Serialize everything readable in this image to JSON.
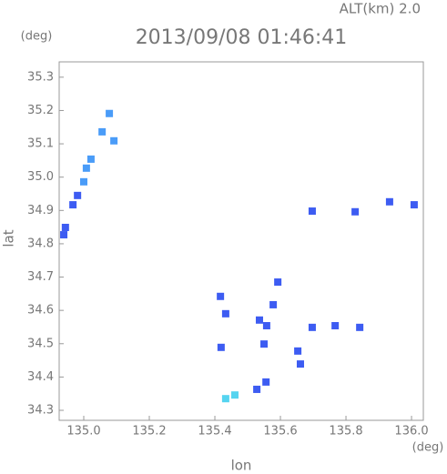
{
  "chart_data": {
    "type": "scatter",
    "title": "2013/09/08 01:46:41",
    "subtitle": "ALT(km) 2.0",
    "xlabel": "lon",
    "ylabel": "lat",
    "xunit": "(deg)",
    "yunit": "(deg)",
    "xlim": [
      134.925,
      136.036
    ],
    "ylim": [
      34.27,
      35.346
    ],
    "xticks": [
      {
        "value": 135,
        "label": "135.0"
      },
      {
        "value": 135.2,
        "label": "135.2"
      },
      {
        "value": 135.4,
        "label": "135.4"
      },
      {
        "value": 135.6,
        "label": "135.6"
      },
      {
        "value": 135.8,
        "label": "135.8"
      },
      {
        "value": 136,
        "label": "136.0"
      }
    ],
    "yticks": [
      34.3,
      34.4,
      34.5,
      34.6,
      34.7,
      34.8,
      34.9,
      {
        "value": 35,
        "label": "35.0"
      },
      35.1,
      35.2,
      35.3
    ],
    "series": [
      {
        "color": "#3d5cf2",
        "x": [
          134.981,
          134.967,
          134.944,
          134.939,
          136.008,
          135.697,
          135.828,
          135.933,
          135.417,
          135.433,
          135.536,
          135.558,
          135.55,
          135.578,
          135.592,
          135.697,
          135.767,
          135.842,
          135.653,
          135.661,
          135.419,
          135.556,
          135.528
        ],
        "y": [
          34.945,
          34.917,
          34.849,
          34.827,
          34.917,
          34.898,
          34.896,
          34.926,
          34.642,
          34.59,
          34.571,
          34.554,
          34.499,
          34.617,
          34.685,
          34.549,
          34.554,
          34.549,
          34.478,
          34.439,
          34.489,
          34.385,
          34.363
        ]
      },
      {
        "color": "#4a9cf8",
        "x": [
          135.078,
          135.056,
          135.022,
          135.0,
          135.008,
          135.092
        ],
        "y": [
          35.191,
          35.136,
          35.054,
          34.986,
          35.027,
          35.109
        ]
      },
      {
        "color": "#55d4f0",
        "x": [
          135.461,
          135.433
        ],
        "y": [
          34.346,
          34.335
        ]
      }
    ]
  }
}
